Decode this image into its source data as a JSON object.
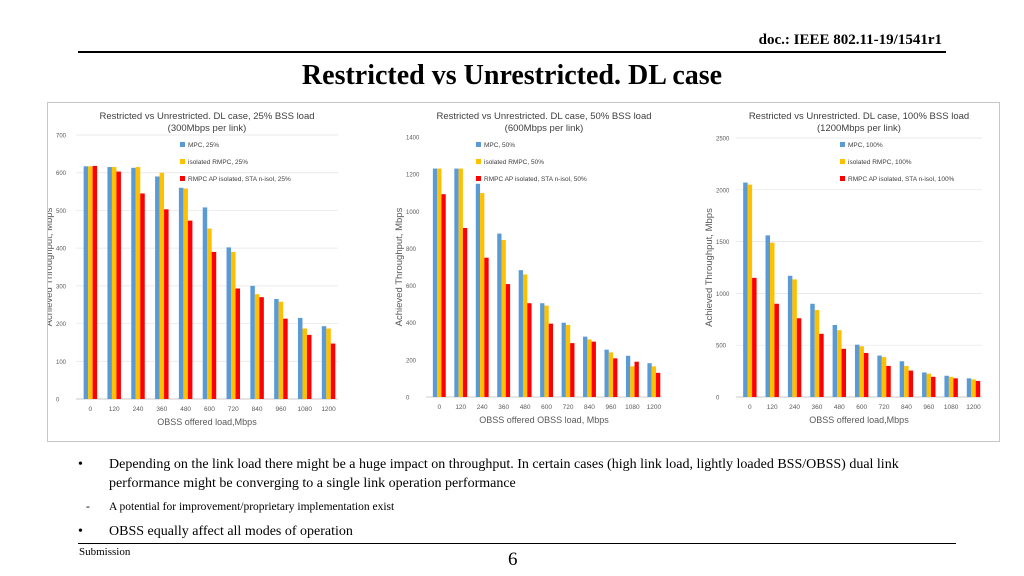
{
  "header": {
    "doc_id": "doc.: IEEE 802.11-19/1541r1",
    "title": "Restricted vs Unrestricted. DL case"
  },
  "colors": {
    "mpc": "#5b9bd5",
    "isolated_rmpc": "#ffc000",
    "rmpc_ap_isolated": "#ff0000",
    "axis_text": "#595959",
    "grid": "#e4e4e4"
  },
  "chart_data": [
    {
      "type": "bar",
      "title": [
        "Restricted vs Unrestricted. DL case, 25% BSS load",
        "(300Mbps per link)"
      ],
      "xlabel": "OBSS offered load,Mbps",
      "ylabel": "Achieved Throughput, Mbps",
      "ylim": [
        0,
        700
      ],
      "yticks": [
        0,
        100,
        200,
        300,
        400,
        500,
        600,
        700
      ],
      "grid": true,
      "legend_position": "top-right",
      "categories": [
        "0",
        "120",
        "240",
        "360",
        "480",
        "600",
        "720",
        "840",
        "960",
        "1080",
        "1200"
      ],
      "series": [
        {
          "name": "MPC, 25%",
          "color_key": "mpc",
          "values": [
            617,
            615,
            613,
            590,
            560,
            508,
            402,
            300,
            265,
            215,
            193
          ]
        },
        {
          "name": "isolated RMPC, 25%",
          "color_key": "isolated_rmpc",
          "values": [
            617,
            615,
            615,
            600,
            558,
            452,
            390,
            278,
            258,
            187,
            187
          ]
        },
        {
          "name": "RMPC AP isolated, STA n-isol, 25%",
          "color_key": "rmpc_ap_isolated",
          "values": [
            618,
            603,
            545,
            503,
            473,
            390,
            293,
            270,
            213,
            170,
            147
          ]
        }
      ]
    },
    {
      "type": "bar",
      "title": [
        "Restricted vs Unrestricted. DL case, 50% BSS load",
        "(600Mbps per link)"
      ],
      "xlabel": "OBSS offered OBSS load, Mbps",
      "ylabel": "Achieved Throughput, Mbps",
      "ylim": [
        0,
        1400
      ],
      "yticks": [
        0,
        200,
        400,
        600,
        800,
        1000,
        1200,
        1400
      ],
      "grid": false,
      "legend_position": "top-right",
      "categories": [
        "0",
        "120",
        "240",
        "360",
        "480",
        "600",
        "720",
        "840",
        "960",
        "1080",
        "1200"
      ],
      "series": [
        {
          "name": "MPC, 50%",
          "color_key": "mpc",
          "values": [
            1230,
            1230,
            1148,
            880,
            683,
            505,
            400,
            325,
            255,
            222,
            182
          ]
        },
        {
          "name": "isolated RMPC, 50%",
          "color_key": "isolated_rmpc",
          "values": [
            1230,
            1230,
            1098,
            845,
            660,
            492,
            388,
            310,
            240,
            165,
            165
          ]
        },
        {
          "name": "RMPC AP isolated, STA n-isol, 50%",
          "color_key": "rmpc_ap_isolated",
          "values": [
            1092,
            910,
            750,
            608,
            505,
            395,
            290,
            298,
            208,
            190,
            130
          ]
        }
      ]
    },
    {
      "type": "bar",
      "title": [
        "Restricted vs Unrestricted. DL case, 100% BSS load",
        "(1200Mbps per link)"
      ],
      "xlabel": "OBSS offered load,Mbps",
      "ylabel": "Achieved Throughput, Mbps",
      "ylim": [
        0,
        2500
      ],
      "yticks": [
        0,
        500,
        1000,
        1500,
        2000,
        2500
      ],
      "grid": true,
      "legend_position": "top-right",
      "categories": [
        "0",
        "120",
        "240",
        "360",
        "480",
        "600",
        "720",
        "840",
        "960",
        "1080",
        "1200"
      ],
      "series": [
        {
          "name": "MPC, 100%",
          "color_key": "mpc",
          "values": [
            2070,
            1560,
            1170,
            900,
            695,
            505,
            400,
            345,
            237,
            205,
            180
          ]
        },
        {
          "name": "isolated RMPC, 100%",
          "color_key": "isolated_rmpc",
          "values": [
            2050,
            1490,
            1135,
            840,
            645,
            490,
            385,
            300,
            225,
            195,
            170
          ]
        },
        {
          "name": "RMPC AP isolated, STA n-isol, 100%",
          "color_key": "rmpc_ap_isolated",
          "values": [
            1150,
            900,
            760,
            610,
            465,
            425,
            300,
            255,
            195,
            180,
            155
          ]
        }
      ]
    }
  ],
  "bullets": {
    "b1_mark": "•",
    "b1_text": "Depending on the link load there might be a huge impact on throughput. In certain cases (high link load, lightly loaded BSS/OBSS) dual link performance might be converging to a single link operation performance",
    "b2_mark": "-",
    "b2_text": "A potential for improvement/proprietary implementation exist",
    "b3_mark": "•",
    "b3_text": "OBSS equally affect all modes of operation"
  },
  "footer": {
    "left": "Submission",
    "page": "6"
  }
}
